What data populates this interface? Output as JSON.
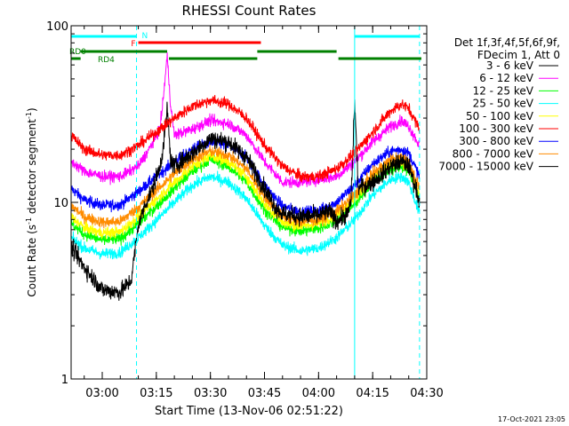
{
  "chart_data": {
    "type": "line",
    "title": "RHESSI Count Rates",
    "xlabel": "Start Time (13-Nov-06 02:51:22)",
    "ylabel_parts": [
      "Count Rate (s",
      "-1",
      " detector segment",
      "-1",
      ")"
    ],
    "y_scale": "log",
    "ylim": [
      1,
      100
    ],
    "xlim": [
      "02:51:22",
      "04:30:00"
    ],
    "y_ticks": [
      "1",
      "10",
      "100"
    ],
    "x_ticks": [
      "03:00",
      "03:15",
      "03:30",
      "03:45",
      "04:00",
      "04:15",
      "04:30"
    ],
    "legend_header": [
      "Det 1f,3f,4f,5f,6f,9f,",
      "FDecim 1, Att 0"
    ],
    "timestamp": "17-Oct-2021 23:05",
    "series": [
      {
        "name": "3 - 6 keV",
        "color": "#000000",
        "points": [
          [
            "02:51:22",
            5.6
          ],
          [
            "02:55",
            4.3
          ],
          [
            "03:00",
            3.2
          ],
          [
            "03:05",
            3.1
          ],
          [
            "03:08",
            3.6
          ],
          [
            "03:10",
            7.4
          ],
          [
            "03:12",
            9.8
          ],
          [
            "03:14",
            12
          ],
          [
            "03:16",
            16
          ],
          [
            "03:17",
            21
          ],
          [
            "03:18",
            34
          ],
          [
            "03:19",
            17
          ],
          [
            "03:20",
            16
          ],
          [
            "03:25",
            19
          ],
          [
            "03:30",
            23
          ],
          [
            "03:35",
            22
          ],
          [
            "03:40",
            18
          ],
          [
            "03:45",
            12
          ],
          [
            "03:48",
            9.4
          ],
          [
            "03:50",
            8.6
          ],
          [
            "03:55",
            8.3
          ],
          [
            "04:00",
            8.4
          ],
          [
            "04:03",
            8.9
          ],
          [
            "04:05",
            7.8
          ],
          [
            "04:08",
            8.6
          ],
          [
            "04:09",
            10
          ],
          [
            "04:10",
            38
          ],
          [
            "04:11",
            12
          ],
          [
            "04:15",
            13
          ],
          [
            "04:20",
            16
          ],
          [
            "04:23",
            17
          ],
          [
            "04:25",
            16
          ],
          [
            "04:27",
            12
          ],
          [
            "04:28",
            10
          ]
        ]
      },
      {
        "name": "6 - 12 keV",
        "color": "#ff00ff",
        "points": [
          [
            "02:51:22",
            17
          ],
          [
            "02:55",
            15
          ],
          [
            "03:00",
            14
          ],
          [
            "03:05",
            14
          ],
          [
            "03:10",
            16
          ],
          [
            "03:13",
            20
          ],
          [
            "03:16",
            26
          ],
          [
            "03:17",
            40
          ],
          [
            "03:18",
            68
          ],
          [
            "03:19",
            35
          ],
          [
            "03:20",
            24
          ],
          [
            "03:25",
            26
          ],
          [
            "03:30",
            29
          ],
          [
            "03:35",
            28
          ],
          [
            "03:40",
            24
          ],
          [
            "03:45",
            17
          ],
          [
            "03:50",
            13
          ],
          [
            "03:55",
            13
          ],
          [
            "04:00",
            13.5
          ],
          [
            "04:05",
            14
          ],
          [
            "04:10",
            17
          ],
          [
            "04:15",
            22
          ],
          [
            "04:20",
            27
          ],
          [
            "04:23",
            29
          ],
          [
            "04:25",
            27
          ],
          [
            "04:28",
            21
          ]
        ]
      },
      {
        "name": "12 - 25 keV",
        "color": "#00ff00",
        "points": [
          [
            "02:51:22",
            7.6
          ],
          [
            "02:55",
            6.6
          ],
          [
            "03:00",
            6.1
          ],
          [
            "03:05",
            6.2
          ],
          [
            "03:10",
            7.6
          ],
          [
            "03:15",
            9.5
          ],
          [
            "03:20",
            12
          ],
          [
            "03:25",
            15
          ],
          [
            "03:30",
            17.5
          ],
          [
            "03:35",
            16
          ],
          [
            "03:40",
            13
          ],
          [
            "03:45",
            9.1
          ],
          [
            "03:50",
            7.2
          ],
          [
            "03:55",
            6.9
          ],
          [
            "04:00",
            7.1
          ],
          [
            "04:05",
            7.9
          ],
          [
            "04:10",
            9.8
          ],
          [
            "04:15",
            13
          ],
          [
            "04:20",
            15.5
          ],
          [
            "04:23",
            16
          ],
          [
            "04:25",
            15
          ],
          [
            "04:28",
            10.5
          ]
        ]
      },
      {
        "name": "25 - 50 keV",
        "color": "#00ffff",
        "points": [
          [
            "02:51:22",
            6.3
          ],
          [
            "02:55",
            5.5
          ],
          [
            "03:00",
            5.1
          ],
          [
            "03:05",
            5.2
          ],
          [
            "03:10",
            6.3
          ],
          [
            "03:15",
            7.9
          ],
          [
            "03:20",
            10
          ],
          [
            "03:25",
            12.5
          ],
          [
            "03:30",
            14
          ],
          [
            "03:35",
            13
          ],
          [
            "03:40",
            10.5
          ],
          [
            "03:45",
            7.4
          ],
          [
            "03:50",
            5.7
          ],
          [
            "03:55",
            5.3
          ],
          [
            "04:00",
            5.5
          ],
          [
            "04:05",
            6.3
          ],
          [
            "04:10",
            8
          ],
          [
            "04:15",
            11
          ],
          [
            "04:20",
            13.5
          ],
          [
            "04:23",
            14
          ],
          [
            "04:25",
            13
          ],
          [
            "04:28",
            8.6
          ]
        ]
      },
      {
        "name": "50 - 100 keV",
        "color": "#ffff00",
        "points": [
          [
            "02:51:22",
            8.3
          ],
          [
            "02:55",
            7.2
          ],
          [
            "03:00",
            6.7
          ],
          [
            "03:05",
            6.8
          ],
          [
            "03:10",
            8.3
          ],
          [
            "03:15",
            10.4
          ],
          [
            "03:20",
            13
          ],
          [
            "03:25",
            16
          ],
          [
            "03:30",
            18.5
          ],
          [
            "03:35",
            17
          ],
          [
            "03:40",
            14
          ],
          [
            "03:45",
            9.8
          ],
          [
            "03:50",
            7.7
          ],
          [
            "03:55",
            7.3
          ],
          [
            "04:00",
            7.6
          ],
          [
            "04:05",
            8.5
          ],
          [
            "04:10",
            10.5
          ],
          [
            "04:15",
            14
          ],
          [
            "04:20",
            16.5
          ],
          [
            "04:23",
            17
          ],
          [
            "04:25",
            16
          ],
          [
            "04:28",
            11
          ]
        ]
      },
      {
        "name": "100 - 300 keV",
        "color": "#ff0000",
        "points": [
          [
            "02:51:22",
            24
          ],
          [
            "02:55",
            20
          ],
          [
            "03:00",
            18.5
          ],
          [
            "03:05",
            18.5
          ],
          [
            "03:10",
            21
          ],
          [
            "03:15",
            25
          ],
          [
            "03:20",
            30
          ],
          [
            "03:25",
            35
          ],
          [
            "03:30",
            38
          ],
          [
            "03:35",
            36
          ],
          [
            "03:40",
            30
          ],
          [
            "03:45",
            21
          ],
          [
            "03:50",
            16
          ],
          [
            "03:55",
            14
          ],
          [
            "04:00",
            14
          ],
          [
            "04:05",
            15.5
          ],
          [
            "04:10",
            19
          ],
          [
            "04:15",
            25
          ],
          [
            "04:20",
            33
          ],
          [
            "04:23",
            36
          ],
          [
            "04:25",
            34
          ],
          [
            "04:28",
            26
          ]
        ]
      },
      {
        "name": "300 - 800 keV",
        "color": "#0000ff",
        "points": [
          [
            "02:51:22",
            12
          ],
          [
            "02:55",
            10.3
          ],
          [
            "03:00",
            9.6
          ],
          [
            "03:05",
            9.7
          ],
          [
            "03:10",
            11.5
          ],
          [
            "03:15",
            14
          ],
          [
            "03:20",
            17
          ],
          [
            "03:25",
            20
          ],
          [
            "03:30",
            22
          ],
          [
            "03:35",
            21
          ],
          [
            "03:40",
            18
          ],
          [
            "03:45",
            12.5
          ],
          [
            "03:50",
            9.5
          ],
          [
            "03:55",
            8.8
          ],
          [
            "04:00",
            9
          ],
          [
            "04:05",
            10
          ],
          [
            "04:10",
            12.5
          ],
          [
            "04:15",
            16.5
          ],
          [
            "04:20",
            19.5
          ],
          [
            "04:23",
            20
          ],
          [
            "04:25",
            19
          ],
          [
            "04:28",
            14
          ]
        ]
      },
      {
        "name": "800 - 7000 keV",
        "color": "#ff8c00",
        "points": [
          [
            "02:51:22",
            9.6
          ],
          [
            "02:55",
            8.3
          ],
          [
            "03:00",
            7.7
          ],
          [
            "03:05",
            7.8
          ],
          [
            "03:10",
            9.4
          ],
          [
            "03:15",
            11.7
          ],
          [
            "03:20",
            14.5
          ],
          [
            "03:25",
            17.5
          ],
          [
            "03:30",
            19.5
          ],
          [
            "03:35",
            18.5
          ],
          [
            "03:40",
            15.5
          ],
          [
            "03:45",
            10.8
          ],
          [
            "03:50",
            8.3
          ],
          [
            "03:55",
            7.8
          ],
          [
            "04:00",
            8
          ],
          [
            "04:05",
            8.9
          ],
          [
            "04:10",
            11
          ],
          [
            "04:15",
            14.5
          ],
          [
            "04:20",
            17.5
          ],
          [
            "04:23",
            18
          ],
          [
            "04:25",
            17
          ],
          [
            "04:28",
            12
          ]
        ]
      },
      {
        "name": "7000 - 15000 keV",
        "color": "#000000",
        "points": []
      }
    ],
    "attenuator_bars": [
      {
        "label": "N",
        "color": "#00ffff",
        "segments": [
          [
            "02:51:22",
            "03:09:30"
          ],
          [
            "04:10:00",
            "04:28:00"
          ]
        ]
      },
      {
        "label": "F",
        "color": "#ff0000",
        "segments": [
          [
            "03:10:00",
            "03:44:00"
          ]
        ]
      },
      {
        "label": "RD0",
        "color": "#008000",
        "segments": [
          [
            "02:54:00",
            "03:18:00"
          ],
          [
            "03:43:00",
            "04:05:00"
          ]
        ]
      },
      {
        "label": "RD4",
        "color": "#008000",
        "segments": [
          [
            "02:51:22",
            "02:54:00"
          ],
          [
            "03:18:30",
            "03:43:00"
          ],
          [
            "04:05:30",
            "04:28:30"
          ]
        ]
      }
    ],
    "vertical_markers": [
      {
        "time": "02:51:22",
        "style": "solid",
        "color": "#00ffff"
      },
      {
        "time": "03:09:30",
        "style": "dashed",
        "color": "#00ffff"
      },
      {
        "time": "04:10:00",
        "style": "solid",
        "color": "#00ffff"
      },
      {
        "time": "04:28:00",
        "style": "dashed",
        "color": "#00ffff"
      }
    ]
  }
}
